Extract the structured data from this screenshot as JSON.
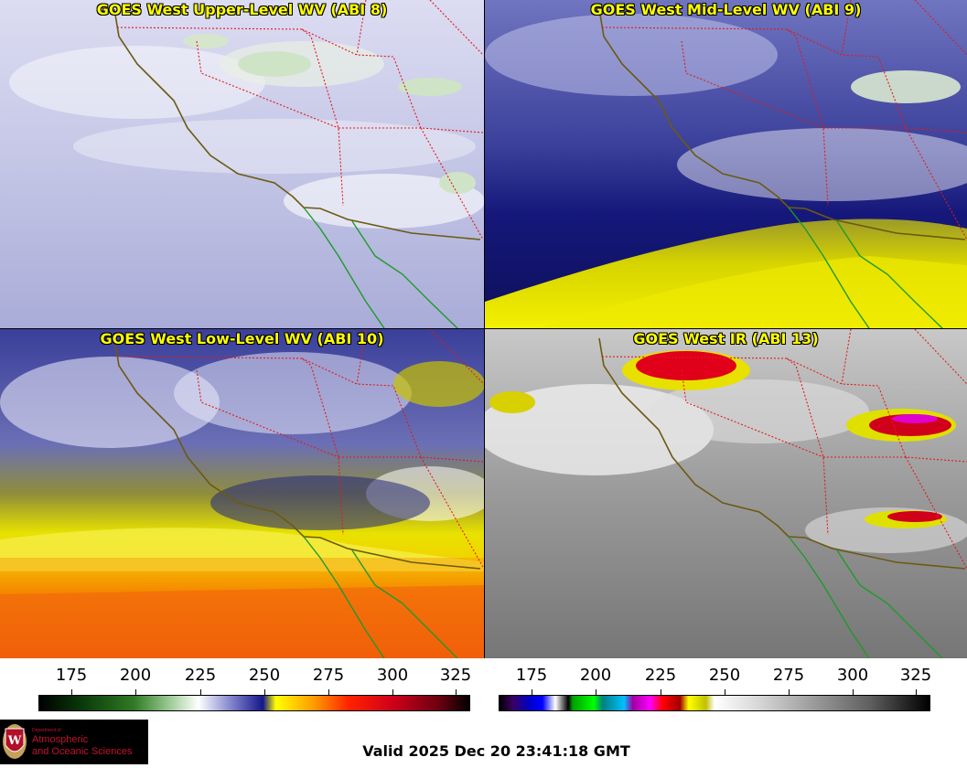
{
  "panels": [
    {
      "title": "GOES West Upper-Level WV (ABI 8)"
    },
    {
      "title": "GOES West Mid-Level WV (ABI 9)"
    },
    {
      "title": "GOES West Low-Level WV (ABI 10)"
    },
    {
      "title": "GOES West IR (ABI 13)"
    }
  ],
  "colorbars": [
    {
      "ticks": [
        "175",
        "200",
        "225",
        "250",
        "275",
        "300",
        "325"
      ],
      "type": "water-vapor"
    },
    {
      "ticks": [
        "175",
        "200",
        "225",
        "250",
        "275",
        "300",
        "325"
      ],
      "type": "infrared"
    }
  ],
  "logo": {
    "dept": "Department of",
    "line1": "Atmospheric",
    "line2": "and Oceanic Sciences",
    "icon": "university-crest-icon"
  },
  "valid_time": "Valid 2025 Dec 20 23:41:18 GMT",
  "colors": {
    "coast": "#6b5a12",
    "mexico_coast": "#1f9a2a",
    "state_border": "#e01a1a"
  }
}
